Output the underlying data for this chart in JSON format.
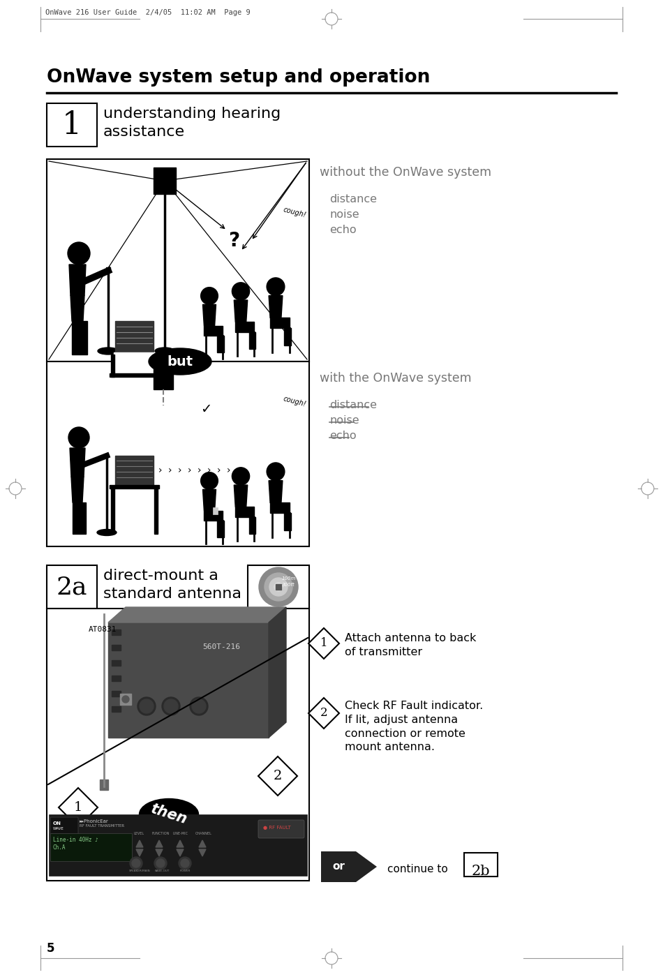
{
  "page_header": "OnWave 216 User Guide  2/4/05  11:02 AM  Page 9",
  "main_title": "OnWave system setup and operation",
  "step1_number": "1",
  "step1_title": "understanding hearing\nassistance",
  "step2a_number": "2a",
  "step2a_title": "direct-mount a\nstandard antenna",
  "without_label": "without the OnWave system",
  "with_label": "with the OnWave system",
  "problems_without": [
    "distance",
    "noise",
    "echo"
  ],
  "problems_with": [
    "distance",
    "noise",
    "echo"
  ],
  "but_text": "but",
  "then_text": "then",
  "or_text": "or",
  "continue_text": "continue to",
  "step2b_ref": "2b",
  "attach_antenna_num": "1",
  "attach_antenna_text": "Attach antenna to back\nof transmitter",
  "check_rf_num": "2",
  "check_rf_text": "Check RF Fault indicator.\nIf lit, adjust antenna\nconnection or remote\nmount antenna.",
  "at_label": "AT0831",
  "model_label": "560T-216",
  "page_number": "5",
  "bg_color": "#ffffff",
  "text_color": "#000000",
  "gray_text": "#777777",
  "light_gray": "#aaaaaa"
}
